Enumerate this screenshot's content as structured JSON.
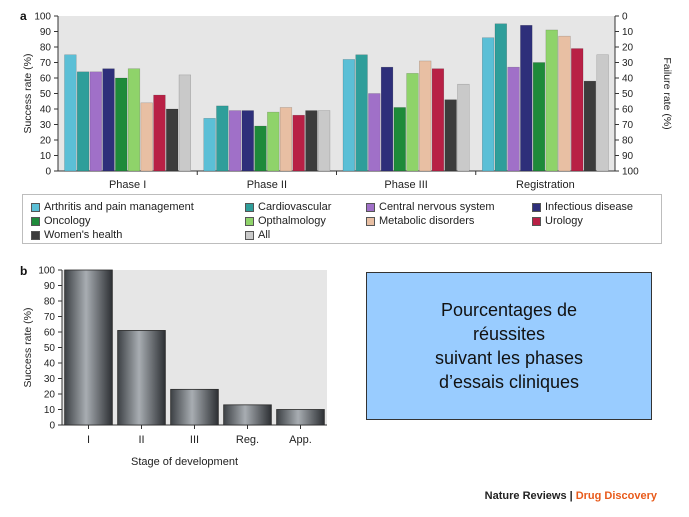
{
  "panel_a_label": "a",
  "panel_b_label": "b",
  "note": {
    "lines": [
      "Pourcentages de",
      "réussites",
      "suivant les phases",
      "d’essais cliniques"
    ],
    "bg": "#99ccff"
  },
  "credit": {
    "publisher": "Nature Reviews",
    "separator": "|",
    "journal": "Drug Discovery",
    "journal_color": "#e85a1a"
  },
  "chart_data": [
    {
      "type": "bar",
      "ylabel": "Success rate (%)",
      "y2label": "Failure rate (%)",
      "ylim": [
        0,
        100
      ],
      "y2lim": [
        100,
        0
      ],
      "yticks": [
        0,
        10,
        20,
        30,
        40,
        50,
        60,
        70,
        80,
        90,
        100
      ],
      "y2ticks": [
        100,
        90,
        80,
        70,
        60,
        50,
        40,
        30,
        20,
        10,
        0
      ],
      "grid": false,
      "background": "#e6e6e6",
      "legend_placement": "below",
      "categories": [
        "Phase I",
        "Phase II",
        "Phase III",
        "Registration"
      ],
      "series": [
        {
          "name": "Arthritis and pain management",
          "color": "#5bbfd6",
          "values": [
            75,
            34,
            72,
            86
          ]
        },
        {
          "name": "Cardiovascular",
          "color": "#2f9e9a",
          "values": [
            64,
            42,
            75,
            95
          ]
        },
        {
          "name": "Central nervous system",
          "color": "#a070c8",
          "values": [
            64,
            39,
            50,
            67
          ]
        },
        {
          "name": "Infectious disease",
          "color": "#2e2f7a",
          "values": [
            66,
            39,
            67,
            94
          ]
        },
        {
          "name": "Oncology",
          "color": "#1e8a3a",
          "values": [
            60,
            29,
            41,
            70
          ]
        },
        {
          "name": "Opthalmology",
          "color": "#8fd36a",
          "values": [
            66,
            38,
            63,
            91
          ]
        },
        {
          "name": "Metabolic disorders",
          "color": "#e8bfa3",
          "values": [
            44,
            41,
            71,
            87
          ]
        },
        {
          "name": "Urology",
          "color": "#b82045",
          "values": [
            49,
            36,
            66,
            79
          ]
        },
        {
          "name": "Women's health",
          "color": "#3c3c3c",
          "values": [
            40,
            39,
            46,
            58
          ]
        },
        {
          "name": "All",
          "color": "#c9c9c9",
          "values": [
            62,
            39,
            56,
            75
          ]
        }
      ]
    },
    {
      "type": "bar",
      "xlabel": "Stage of development",
      "ylabel": "Success rate (%)",
      "ylim": [
        0,
        100
      ],
      "yticks": [
        0,
        10,
        20,
        30,
        40,
        50,
        60,
        70,
        80,
        90,
        100
      ],
      "grid": false,
      "background": "#e6e6e6",
      "categories": [
        "I",
        "II",
        "III",
        "Reg.",
        "App."
      ],
      "values": [
        100,
        61,
        23,
        13,
        10
      ],
      "color": "#6b6f73"
    }
  ]
}
